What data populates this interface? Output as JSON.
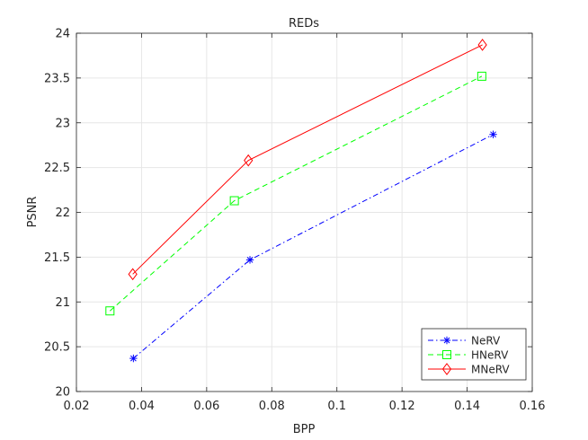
{
  "chart_data": {
    "type": "line",
    "title": "REDs",
    "xlabel": "BPP",
    "ylabel": "PSNR",
    "xlim": [
      0.02,
      0.16
    ],
    "ylim": [
      20,
      24
    ],
    "xticks": [
      0.02,
      0.04,
      0.06,
      0.08,
      0.1,
      0.12,
      0.14,
      0.16
    ],
    "xtick_labels": [
      "0.02",
      "0.04",
      "0.06",
      "0.08",
      "0.1",
      "0.12",
      "0.14",
      "0.16"
    ],
    "yticks": [
      20,
      20.5,
      21,
      21.5,
      22,
      22.5,
      23,
      23.5,
      24
    ],
    "ytick_labels": [
      "20",
      "20.5",
      "21",
      "21.5",
      "22",
      "22.5",
      "23",
      "23.5",
      "24"
    ],
    "grid": true,
    "legend_position": "bottom-right",
    "series": [
      {
        "name": "NeRV",
        "color": "#0000ff",
        "line_style": "dash-dot",
        "marker": "asterisk",
        "x": [
          0.0375,
          0.0733,
          0.148
        ],
        "y": [
          20.37,
          21.47,
          22.87
        ]
      },
      {
        "name": "HNeRV",
        "color": "#00ff00",
        "line_style": "dashed",
        "marker": "square",
        "x": [
          0.0303,
          0.0685,
          0.1445
        ],
        "y": [
          20.9,
          22.13,
          23.52
        ]
      },
      {
        "name": "MNeRV",
        "color": "#ff0000",
        "line_style": "solid",
        "marker": "diamond",
        "x": [
          0.0373,
          0.0728,
          0.1447
        ],
        "y": [
          21.31,
          22.58,
          23.87
        ]
      }
    ]
  }
}
